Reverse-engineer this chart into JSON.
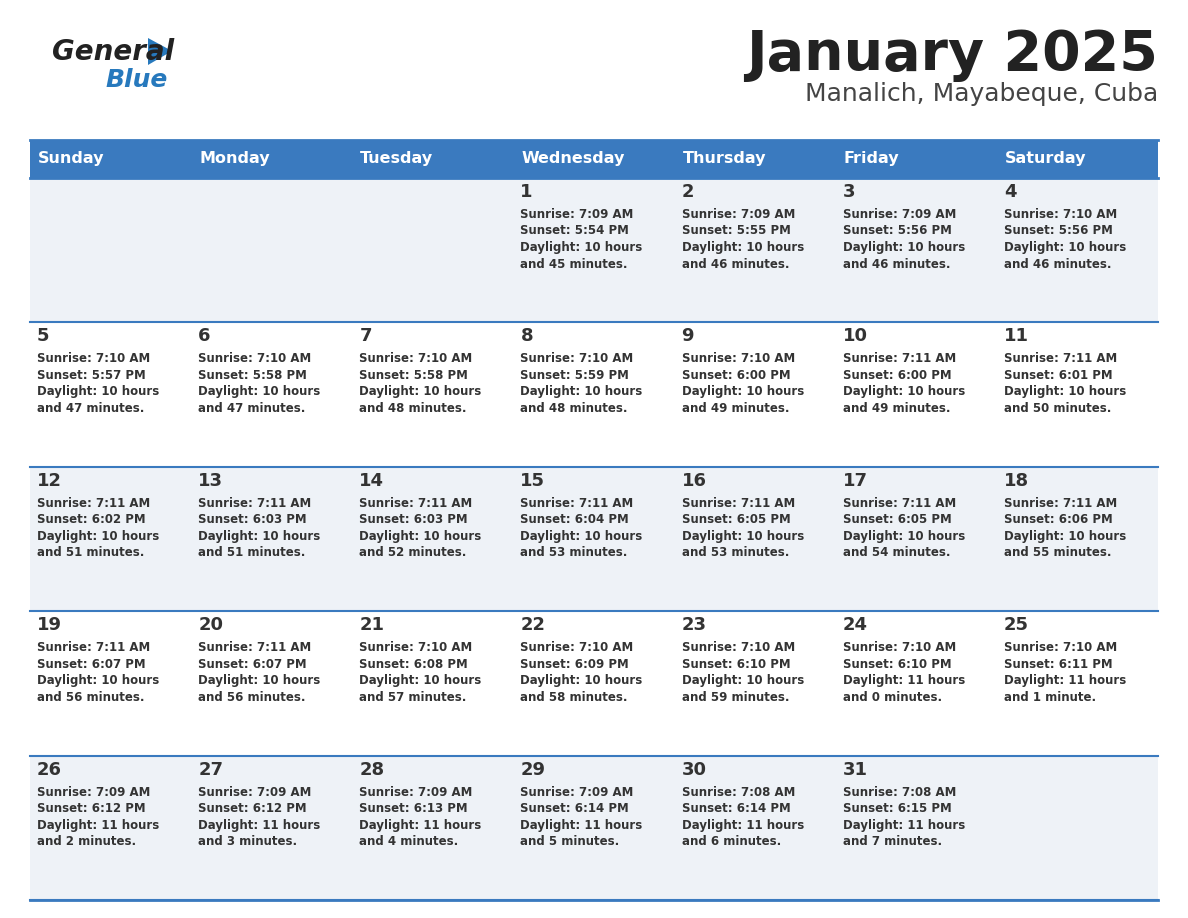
{
  "title": "January 2025",
  "subtitle": "Manalich, Mayabeque, Cuba",
  "header_color": "#3a7abf",
  "header_text_color": "#ffffff",
  "cell_bg_even": "#eef2f7",
  "cell_bg_odd": "#ffffff",
  "day_number_color": "#333333",
  "info_text_color": "#333333",
  "separator_color": "#3a7abf",
  "days_of_week": [
    "Sunday",
    "Monday",
    "Tuesday",
    "Wednesday",
    "Thursday",
    "Friday",
    "Saturday"
  ],
  "weeks": [
    [
      {
        "day": "",
        "sunrise": "",
        "sunset": "",
        "daylight_line1": "",
        "daylight_line2": ""
      },
      {
        "day": "",
        "sunrise": "",
        "sunset": "",
        "daylight_line1": "",
        "daylight_line2": ""
      },
      {
        "day": "",
        "sunrise": "",
        "sunset": "",
        "daylight_line1": "",
        "daylight_line2": ""
      },
      {
        "day": "1",
        "sunrise": "7:09 AM",
        "sunset": "5:54 PM",
        "daylight_line1": "Daylight: 10 hours",
        "daylight_line2": "and 45 minutes."
      },
      {
        "day": "2",
        "sunrise": "7:09 AM",
        "sunset": "5:55 PM",
        "daylight_line1": "Daylight: 10 hours",
        "daylight_line2": "and 46 minutes."
      },
      {
        "day": "3",
        "sunrise": "7:09 AM",
        "sunset": "5:56 PM",
        "daylight_line1": "Daylight: 10 hours",
        "daylight_line2": "and 46 minutes."
      },
      {
        "day": "4",
        "sunrise": "7:10 AM",
        "sunset": "5:56 PM",
        "daylight_line1": "Daylight: 10 hours",
        "daylight_line2": "and 46 minutes."
      }
    ],
    [
      {
        "day": "5",
        "sunrise": "7:10 AM",
        "sunset": "5:57 PM",
        "daylight_line1": "Daylight: 10 hours",
        "daylight_line2": "and 47 minutes."
      },
      {
        "day": "6",
        "sunrise": "7:10 AM",
        "sunset": "5:58 PM",
        "daylight_line1": "Daylight: 10 hours",
        "daylight_line2": "and 47 minutes."
      },
      {
        "day": "7",
        "sunrise": "7:10 AM",
        "sunset": "5:58 PM",
        "daylight_line1": "Daylight: 10 hours",
        "daylight_line2": "and 48 minutes."
      },
      {
        "day": "8",
        "sunrise": "7:10 AM",
        "sunset": "5:59 PM",
        "daylight_line1": "Daylight: 10 hours",
        "daylight_line2": "and 48 minutes."
      },
      {
        "day": "9",
        "sunrise": "7:10 AM",
        "sunset": "6:00 PM",
        "daylight_line1": "Daylight: 10 hours",
        "daylight_line2": "and 49 minutes."
      },
      {
        "day": "10",
        "sunrise": "7:11 AM",
        "sunset": "6:00 PM",
        "daylight_line1": "Daylight: 10 hours",
        "daylight_line2": "and 49 minutes."
      },
      {
        "day": "11",
        "sunrise": "7:11 AM",
        "sunset": "6:01 PM",
        "daylight_line1": "Daylight: 10 hours",
        "daylight_line2": "and 50 minutes."
      }
    ],
    [
      {
        "day": "12",
        "sunrise": "7:11 AM",
        "sunset": "6:02 PM",
        "daylight_line1": "Daylight: 10 hours",
        "daylight_line2": "and 51 minutes."
      },
      {
        "day": "13",
        "sunrise": "7:11 AM",
        "sunset": "6:03 PM",
        "daylight_line1": "Daylight: 10 hours",
        "daylight_line2": "and 51 minutes."
      },
      {
        "day": "14",
        "sunrise": "7:11 AM",
        "sunset": "6:03 PM",
        "daylight_line1": "Daylight: 10 hours",
        "daylight_line2": "and 52 minutes."
      },
      {
        "day": "15",
        "sunrise": "7:11 AM",
        "sunset": "6:04 PM",
        "daylight_line1": "Daylight: 10 hours",
        "daylight_line2": "and 53 minutes."
      },
      {
        "day": "16",
        "sunrise": "7:11 AM",
        "sunset": "6:05 PM",
        "daylight_line1": "Daylight: 10 hours",
        "daylight_line2": "and 53 minutes."
      },
      {
        "day": "17",
        "sunrise": "7:11 AM",
        "sunset": "6:05 PM",
        "daylight_line1": "Daylight: 10 hours",
        "daylight_line2": "and 54 minutes."
      },
      {
        "day": "18",
        "sunrise": "7:11 AM",
        "sunset": "6:06 PM",
        "daylight_line1": "Daylight: 10 hours",
        "daylight_line2": "and 55 minutes."
      }
    ],
    [
      {
        "day": "19",
        "sunrise": "7:11 AM",
        "sunset": "6:07 PM",
        "daylight_line1": "Daylight: 10 hours",
        "daylight_line2": "and 56 minutes."
      },
      {
        "day": "20",
        "sunrise": "7:11 AM",
        "sunset": "6:07 PM",
        "daylight_line1": "Daylight: 10 hours",
        "daylight_line2": "and 56 minutes."
      },
      {
        "day": "21",
        "sunrise": "7:10 AM",
        "sunset": "6:08 PM",
        "daylight_line1": "Daylight: 10 hours",
        "daylight_line2": "and 57 minutes."
      },
      {
        "day": "22",
        "sunrise": "7:10 AM",
        "sunset": "6:09 PM",
        "daylight_line1": "Daylight: 10 hours",
        "daylight_line2": "and 58 minutes."
      },
      {
        "day": "23",
        "sunrise": "7:10 AM",
        "sunset": "6:10 PM",
        "daylight_line1": "Daylight: 10 hours",
        "daylight_line2": "and 59 minutes."
      },
      {
        "day": "24",
        "sunrise": "7:10 AM",
        "sunset": "6:10 PM",
        "daylight_line1": "Daylight: 11 hours",
        "daylight_line2": "and 0 minutes."
      },
      {
        "day": "25",
        "sunrise": "7:10 AM",
        "sunset": "6:11 PM",
        "daylight_line1": "Daylight: 11 hours",
        "daylight_line2": "and 1 minute."
      }
    ],
    [
      {
        "day": "26",
        "sunrise": "7:09 AM",
        "sunset": "6:12 PM",
        "daylight_line1": "Daylight: 11 hours",
        "daylight_line2": "and 2 minutes."
      },
      {
        "day": "27",
        "sunrise": "7:09 AM",
        "sunset": "6:12 PM",
        "daylight_line1": "Daylight: 11 hours",
        "daylight_line2": "and 3 minutes."
      },
      {
        "day": "28",
        "sunrise": "7:09 AM",
        "sunset": "6:13 PM",
        "daylight_line1": "Daylight: 11 hours",
        "daylight_line2": "and 4 minutes."
      },
      {
        "day": "29",
        "sunrise": "7:09 AM",
        "sunset": "6:14 PM",
        "daylight_line1": "Daylight: 11 hours",
        "daylight_line2": "and 5 minutes."
      },
      {
        "day": "30",
        "sunrise": "7:08 AM",
        "sunset": "6:14 PM",
        "daylight_line1": "Daylight: 11 hours",
        "daylight_line2": "and 6 minutes."
      },
      {
        "day": "31",
        "sunrise": "7:08 AM",
        "sunset": "6:15 PM",
        "daylight_line1": "Daylight: 11 hours",
        "daylight_line2": "and 7 minutes."
      },
      {
        "day": "",
        "sunrise": "",
        "sunset": "",
        "daylight_line1": "",
        "daylight_line2": ""
      }
    ]
  ]
}
